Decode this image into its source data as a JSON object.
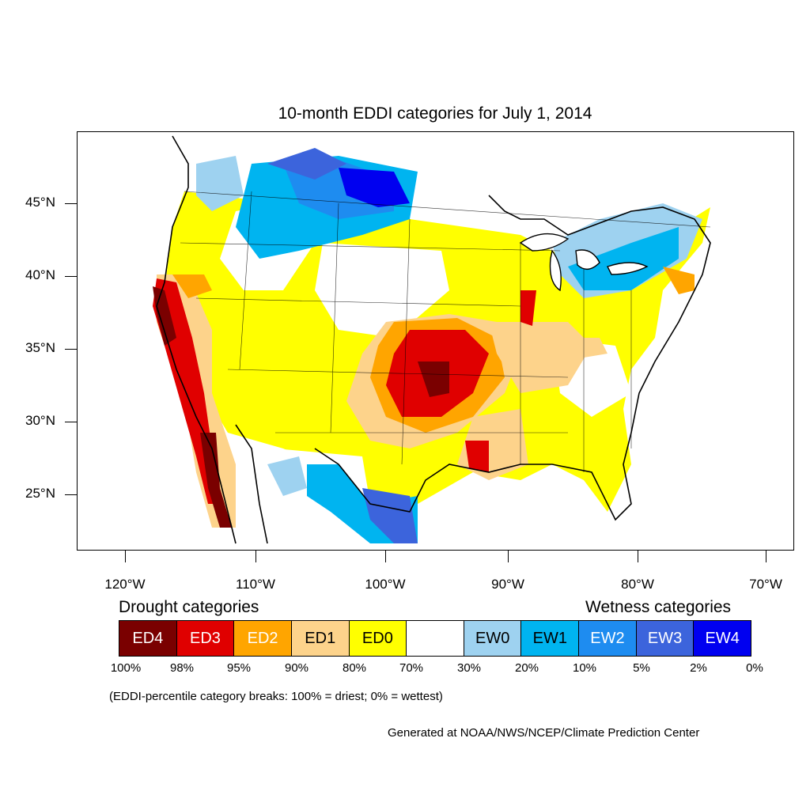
{
  "title": "10-month EDDI categories for July 1, 2014",
  "lat_labels": [
    "45°N",
    "40°N",
    "35°N",
    "30°N",
    "25°N"
  ],
  "lon_labels": [
    "120°W",
    "110°W",
    "100°W",
    "90°W",
    "80°W",
    "70°W"
  ],
  "legend": {
    "drought_heading": "Drought categories",
    "wetness_heading": "Wetness categories",
    "categories": [
      {
        "label": "ED4",
        "color": "#7a0000",
        "text_color": "#ffffff"
      },
      {
        "label": "ED3",
        "color": "#e00000",
        "text_color": "#ffffff"
      },
      {
        "label": "ED2",
        "color": "#ffa500",
        "text_color": "#ffffff"
      },
      {
        "label": "ED1",
        "color": "#fdd38b",
        "text_color": "#000000"
      },
      {
        "label": "ED0",
        "color": "#ffff00",
        "text_color": "#000000"
      },
      {
        "label": "",
        "color": "#ffffff",
        "text_color": "#000000"
      },
      {
        "label": "EW0",
        "color": "#9ed2f0",
        "text_color": "#000000"
      },
      {
        "label": "EW1",
        "color": "#00b4f0",
        "text_color": "#000000"
      },
      {
        "label": "EW2",
        "color": "#1e8cf0",
        "text_color": "#ffffff"
      },
      {
        "label": "EW3",
        "color": "#3c64dc",
        "text_color": "#ffffff"
      },
      {
        "label": "EW4",
        "color": "#0000f0",
        "text_color": "#ffffff"
      }
    ],
    "breaks": [
      "100%",
      "98%",
      "95%",
      "90%",
      "80%",
      "70%",
      "30%",
      "20%",
      "10%",
      "5%",
      "2%",
      "0%"
    ]
  },
  "note": "(EDDI-percentile category breaks: 100% = driest; 0% = wettest)",
  "credit": "Generated at NOAA/NWS/NCEP/Climate Prediction Center"
}
